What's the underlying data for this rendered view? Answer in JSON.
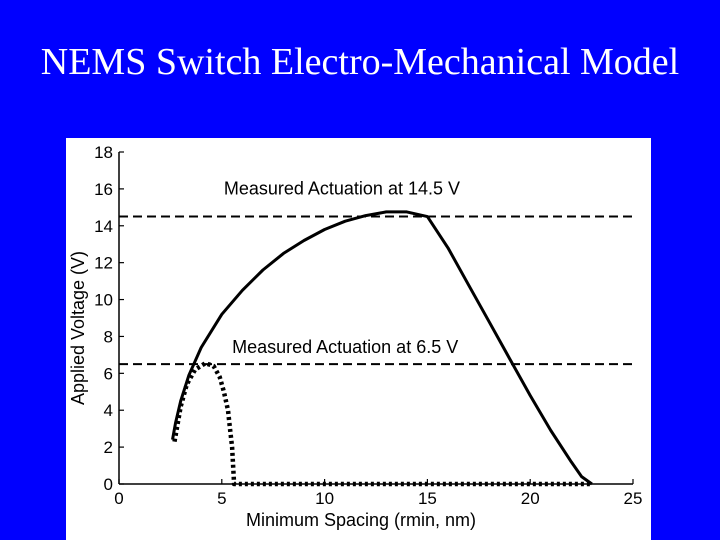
{
  "slide": {
    "title": "NEMS Switch Electro-Mechanical Model",
    "colors": {
      "background": "#0000ff",
      "title": "#ffffff",
      "plot_background": "#ffffff",
      "ink": "#000000"
    }
  },
  "chart_data": {
    "type": "line",
    "title": "",
    "xlabel": "Minimum Spacing (rmin, nm)",
    "ylabel": "Applied Voltage (V)",
    "xlim": [
      0,
      25
    ],
    "ylim": [
      0,
      18
    ],
    "xticks": [
      0,
      5,
      10,
      15,
      20,
      25
    ],
    "yticks": [
      0,
      2,
      4,
      6,
      8,
      10,
      12,
      14,
      16,
      18
    ],
    "grid": false,
    "series": [
      {
        "style": "solid",
        "x": [
          2.6,
          2.75,
          3.0,
          3.4,
          4.0,
          5.0,
          6.0,
          7.0,
          8.0,
          9.0,
          10.0,
          11.0,
          12.0,
          13.0,
          14.0,
          15.0,
          16.0,
          17.0,
          18.0,
          19.0,
          20.0,
          21.0,
          22.0,
          22.5,
          23.0
        ],
        "y": [
          2.4,
          3.3,
          4.5,
          5.9,
          7.4,
          9.2,
          10.5,
          11.6,
          12.5,
          13.2,
          13.8,
          14.25,
          14.55,
          14.75,
          14.75,
          14.5,
          12.8,
          10.8,
          8.8,
          6.8,
          4.8,
          2.9,
          1.2,
          0.4,
          0.0
        ]
      },
      {
        "style": "dotted",
        "x": [
          2.7,
          3.0,
          3.3,
          3.7,
          4.2,
          4.6,
          4.9,
          5.1,
          5.3,
          5.4,
          5.5,
          5.55,
          5.6,
          5.7,
          6.5,
          10.0,
          15.0,
          20.0,
          23.0
        ],
        "y": [
          2.3,
          4.2,
          5.4,
          6.2,
          6.55,
          6.4,
          5.8,
          5.0,
          4.0,
          3.0,
          2.0,
          1.0,
          0.0,
          0.0,
          0.0,
          0.0,
          0.0,
          0.0,
          0.0
        ]
      }
    ],
    "reference_lines": [
      {
        "y": 14.5,
        "style": "dashed",
        "annotation": "Measured Actuation at 14.5 V",
        "annotation_x": 5.1,
        "annotation_y": 15.7
      },
      {
        "y": 6.5,
        "style": "dashed",
        "annotation": "Measured Actuation at 6.5 V",
        "annotation_x": 5.5,
        "annotation_y": 7.1
      }
    ]
  }
}
